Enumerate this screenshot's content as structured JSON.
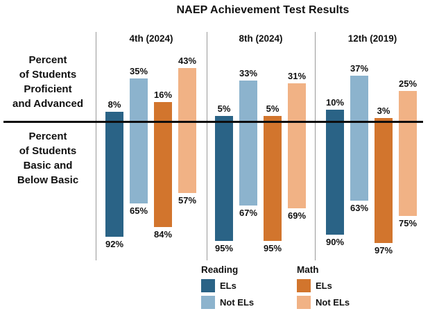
{
  "title": "NAEP Achievement Test Results",
  "left_labels": {
    "top": [
      "Percent",
      "of Students",
      "Proficient",
      "and Advanced"
    ],
    "bottom": [
      "Percent",
      "of Students",
      "Basic and",
      "Below Basic"
    ]
  },
  "legend": {
    "groups": [
      {
        "title": "Reading",
        "items": [
          {
            "label": "ELs",
            "color": "#2A6386"
          },
          {
            "label": "Not ELs",
            "color": "#8CB3CD"
          }
        ]
      },
      {
        "title": "Math",
        "items": [
          {
            "label": "ELs",
            "color": "#D2752D"
          },
          {
            "label": "Not ELs",
            "color": "#F1B285"
          }
        ]
      }
    ]
  },
  "colors": {
    "background": "#ffffff",
    "axis_line": "#0d0d0d",
    "divider_line": "#999999",
    "text": "#111111",
    "reading_els": "#2A6386",
    "reading_not_els": "#8CB3CD",
    "math_els": "#D2752D",
    "math_not_els": "#F1B285"
  },
  "chart_data": {
    "type": "bar",
    "subtype": "diverging-vertical",
    "title": "NAEP Achievement Test Results",
    "value_suffix": "%",
    "above_axis_label": "Percent of Students Proficient and Advanced",
    "below_axis_label": "Percent of Students Basic and Below Basic",
    "legend_position": "bottom",
    "grid": false,
    "series": [
      {
        "name": "Reading ELs",
        "color": "#2A6386"
      },
      {
        "name": "Reading Not ELs",
        "color": "#8CB3CD"
      },
      {
        "name": "Math ELs",
        "color": "#D2752D"
      },
      {
        "name": "Math Not ELs",
        "color": "#F1B285"
      }
    ],
    "groups": [
      {
        "label": "4th (2024)",
        "above_percent_proficient_advanced": [
          8,
          35,
          16,
          43
        ],
        "below_percent_basic_below_basic": [
          92,
          65,
          84,
          57
        ]
      },
      {
        "label": "8th (2024)",
        "above_percent_proficient_advanced": [
          5,
          33,
          5,
          31
        ],
        "below_percent_basic_below_basic": [
          95,
          67,
          95,
          69
        ]
      },
      {
        "label": "12th (2019)",
        "above_percent_proficient_advanced": [
          10,
          37,
          3,
          25
        ],
        "below_percent_basic_below_basic": [
          90,
          63,
          97,
          75
        ]
      }
    ]
  }
}
